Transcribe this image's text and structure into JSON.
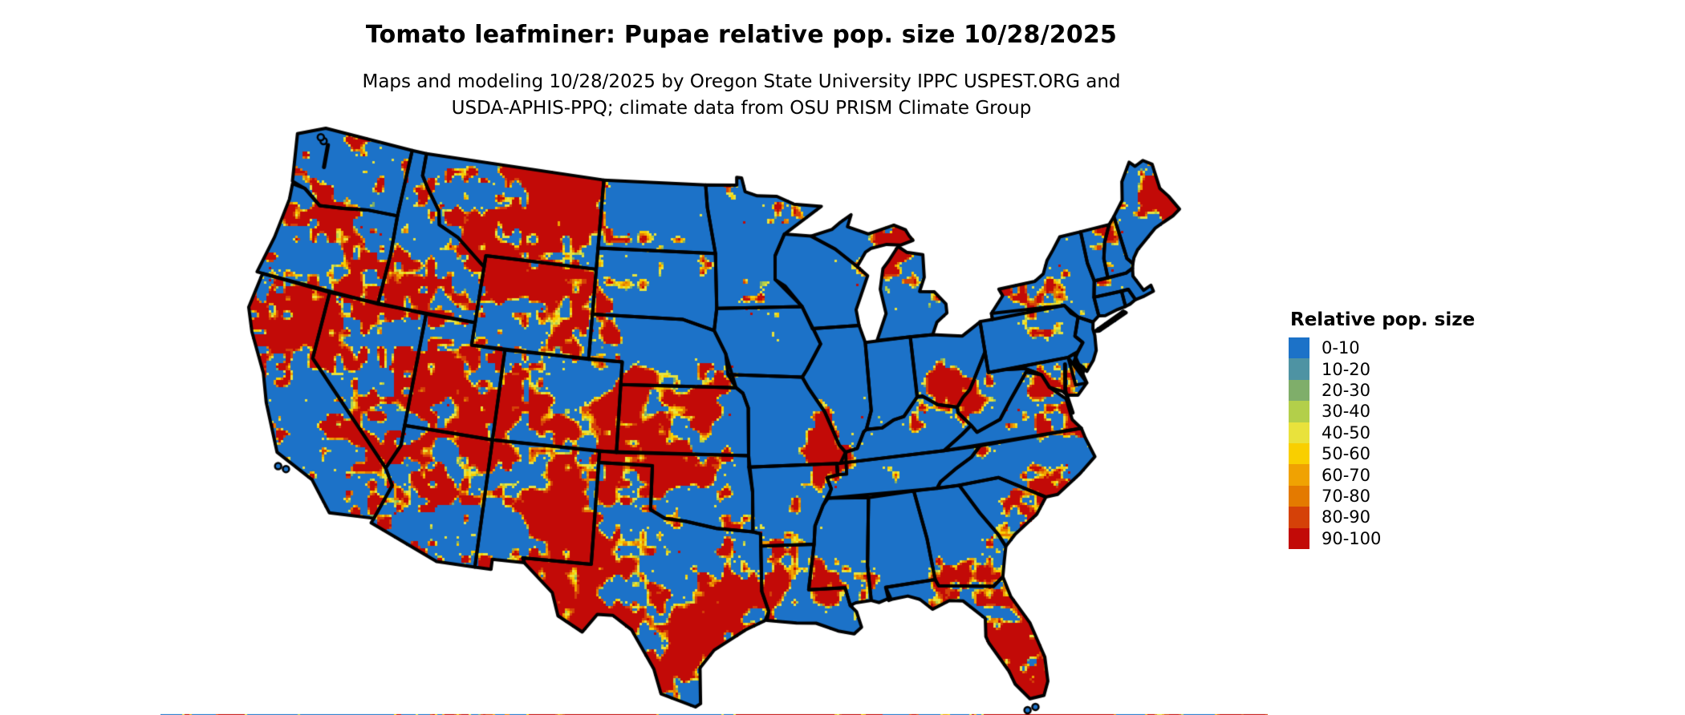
{
  "header": {
    "title": "Tomato leafminer: Pupae relative pop. size 10/28/2025",
    "subtitle_line1": "Maps and modeling 10/28/2025 by Oregon State University IPPC USPEST.ORG and",
    "subtitle_line2": "USDA-APHIS-PPQ; climate data from OSU PRISM Climate Group"
  },
  "legend": {
    "title": "Relative pop. size",
    "items": [
      {
        "label": "0-10",
        "color": "#1c72c8"
      },
      {
        "label": "10-20",
        "color": "#4e93a3"
      },
      {
        "label": "20-30",
        "color": "#7fae6a"
      },
      {
        "label": "30-40",
        "color": "#b3cf4a"
      },
      {
        "label": "40-50",
        "color": "#e9e23c"
      },
      {
        "label": "50-60",
        "color": "#f9cf00"
      },
      {
        "label": "60-70",
        "color": "#f0a202"
      },
      {
        "label": "70-80",
        "color": "#e47a00"
      },
      {
        "label": "80-90",
        "color": "#d54108"
      },
      {
        "label": "90-100",
        "color": "#c20a07"
      }
    ]
  },
  "map": {
    "region": "Continental United States",
    "base_color": "#1c72c8",
    "border_color": "#000000",
    "background_color": "#ffffff"
  }
}
